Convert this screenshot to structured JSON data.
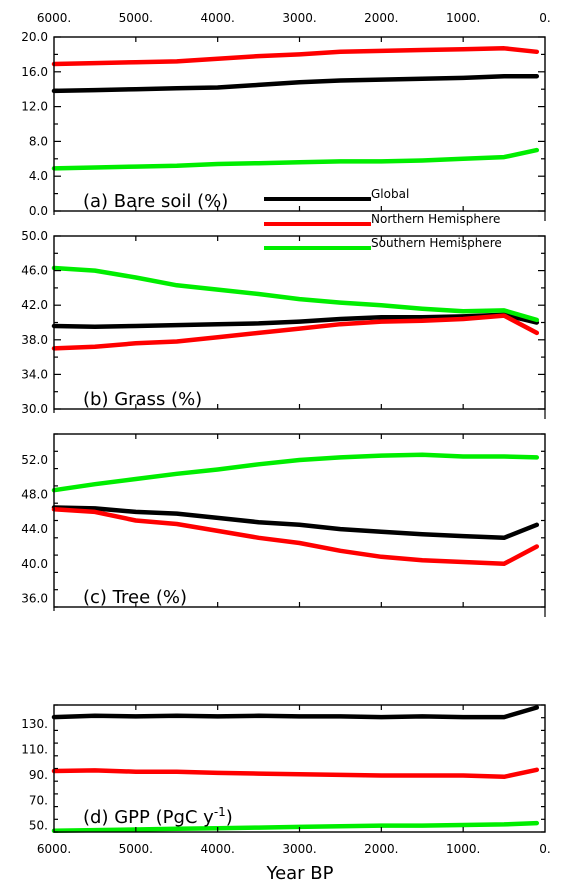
{
  "figure": {
    "top_axis_ticks": [
      "6000.",
      "5000.",
      "4000.",
      "3000.",
      "2000.",
      "1000.",
      "0."
    ],
    "bottom_axis_ticks": [
      "6000.",
      "5000.",
      "4000.",
      "3000.",
      "2000.",
      "1000.",
      "0."
    ],
    "x_axis_title": "Year BP"
  },
  "legend": {
    "entries": [
      {
        "name": "Global",
        "color": "#000000"
      },
      {
        "name": "Northern Hemisphere",
        "color": "#ff0000"
      },
      {
        "name": "Southern Hemisphere",
        "color": "#00ee00"
      }
    ]
  },
  "colors": {
    "global": "#000000",
    "northern": "#ff0000",
    "southern": "#00ee00"
  },
  "chart_data": [
    {
      "type": "line",
      "title": "(a) Bare soil (%)",
      "x": [
        6000,
        5500,
        5000,
        4500,
        4000,
        3500,
        3000,
        2500,
        2000,
        1500,
        1000,
        500,
        100
      ],
      "xlim": [
        6000,
        0
      ],
      "ylim": [
        0,
        20
      ],
      "ytick_values": [
        0,
        4,
        8,
        12,
        16,
        20
      ],
      "ytick_labels": [
        "0.0",
        "4.0",
        "8.0",
        "12.0",
        "16.0",
        "20.0"
      ],
      "series": [
        {
          "name": "Global",
          "values": [
            13.8,
            13.9,
            14.0,
            14.1,
            14.2,
            14.5,
            14.8,
            15.0,
            15.1,
            15.2,
            15.3,
            15.5,
            15.5
          ]
        },
        {
          "name": "Northern Hemisphere",
          "values": [
            16.9,
            17.0,
            17.1,
            17.2,
            17.5,
            17.8,
            18.0,
            18.3,
            18.4,
            18.5,
            18.6,
            18.7,
            18.3
          ]
        },
        {
          "name": "Southern Hemisphere",
          "values": [
            4.9,
            5.0,
            5.1,
            5.2,
            5.4,
            5.5,
            5.6,
            5.7,
            5.7,
            5.8,
            6.0,
            6.2,
            7.0
          ]
        }
      ]
    },
    {
      "type": "line",
      "title": "(b) Grass (%)",
      "x": [
        6000,
        5500,
        5000,
        4500,
        4000,
        3500,
        3000,
        2500,
        2000,
        1500,
        1000,
        500,
        100
      ],
      "xlim": [
        6000,
        0
      ],
      "ylim": [
        30,
        50
      ],
      "ytick_values": [
        30,
        34,
        38,
        42,
        46,
        50
      ],
      "ytick_labels": [
        "30.0",
        "34.0",
        "38.0",
        "42.0",
        "46.0",
        "50.0"
      ],
      "series": [
        {
          "name": "Global",
          "values": [
            39.6,
            39.5,
            39.6,
            39.7,
            39.8,
            39.9,
            40.1,
            40.4,
            40.6,
            40.6,
            40.7,
            40.9,
            40.0
          ]
        },
        {
          "name": "Northern Hemisphere",
          "values": [
            37.0,
            37.2,
            37.6,
            37.8,
            38.3,
            38.8,
            39.3,
            39.8,
            40.1,
            40.2,
            40.4,
            40.8,
            38.8
          ]
        },
        {
          "name": "Southern Hemisphere",
          "values": [
            46.3,
            46.0,
            45.2,
            44.3,
            43.8,
            43.3,
            42.7,
            42.3,
            42.0,
            41.6,
            41.3,
            41.4,
            40.3
          ]
        }
      ]
    },
    {
      "type": "line",
      "title": "(c) Tree (%)",
      "x": [
        6000,
        5500,
        5000,
        4500,
        4000,
        3500,
        3000,
        2500,
        2000,
        1500,
        1000,
        500,
        100
      ],
      "xlim": [
        6000,
        0
      ],
      "ylim": [
        35,
        55
      ],
      "ytick_values": [
        36,
        40,
        44,
        48,
        52
      ],
      "ytick_labels": [
        "36.0",
        "40.0",
        "44.0",
        "48.0",
        "52.0"
      ],
      "series": [
        {
          "name": "Global",
          "values": [
            46.5,
            46.4,
            46.0,
            45.8,
            45.3,
            44.8,
            44.5,
            44.0,
            43.7,
            43.4,
            43.2,
            43.0,
            44.5
          ]
        },
        {
          "name": "Northern Hemisphere",
          "values": [
            46.3,
            46.0,
            45.0,
            44.6,
            43.8,
            43.0,
            42.4,
            41.5,
            40.8,
            40.4,
            40.2,
            40.0,
            42.0
          ]
        },
        {
          "name": "Southern Hemisphere",
          "values": [
            48.5,
            49.2,
            49.8,
            50.4,
            50.9,
            51.5,
            52.0,
            52.3,
            52.5,
            52.6,
            52.4,
            52.4,
            52.3
          ]
        }
      ]
    },
    {
      "type": "line",
      "title": "(d) GPP (PgC y",
      "title_superscript": "-1",
      "title_end": ")",
      "x": [
        6000,
        5500,
        5000,
        4500,
        4000,
        3500,
        3000,
        2500,
        2000,
        1500,
        1000,
        500,
        100
      ],
      "xlim": [
        6000,
        0
      ],
      "ylim": [
        45,
        145
      ],
      "ytick_values": [
        50,
        70,
        90,
        110,
        130
      ],
      "ytick_labels": [
        "50.",
        "70.",
        "90.",
        "110.",
        "130."
      ],
      "series": [
        {
          "name": "Global",
          "values": [
            135.5,
            136.5,
            136,
            136.5,
            136,
            136.5,
            136,
            136,
            135.5,
            136,
            135.5,
            135.5,
            143
          ]
        },
        {
          "name": "Northern Hemisphere",
          "values": [
            93,
            93.5,
            92.5,
            92.5,
            91.5,
            91,
            90.5,
            90,
            89.5,
            89.5,
            89.5,
            88.5,
            94
          ]
        },
        {
          "name": "Southern Hemisphere",
          "values": [
            46,
            46.5,
            47,
            47.5,
            48,
            48.5,
            49,
            49.5,
            50,
            50,
            50.5,
            51,
            52
          ]
        }
      ]
    }
  ]
}
